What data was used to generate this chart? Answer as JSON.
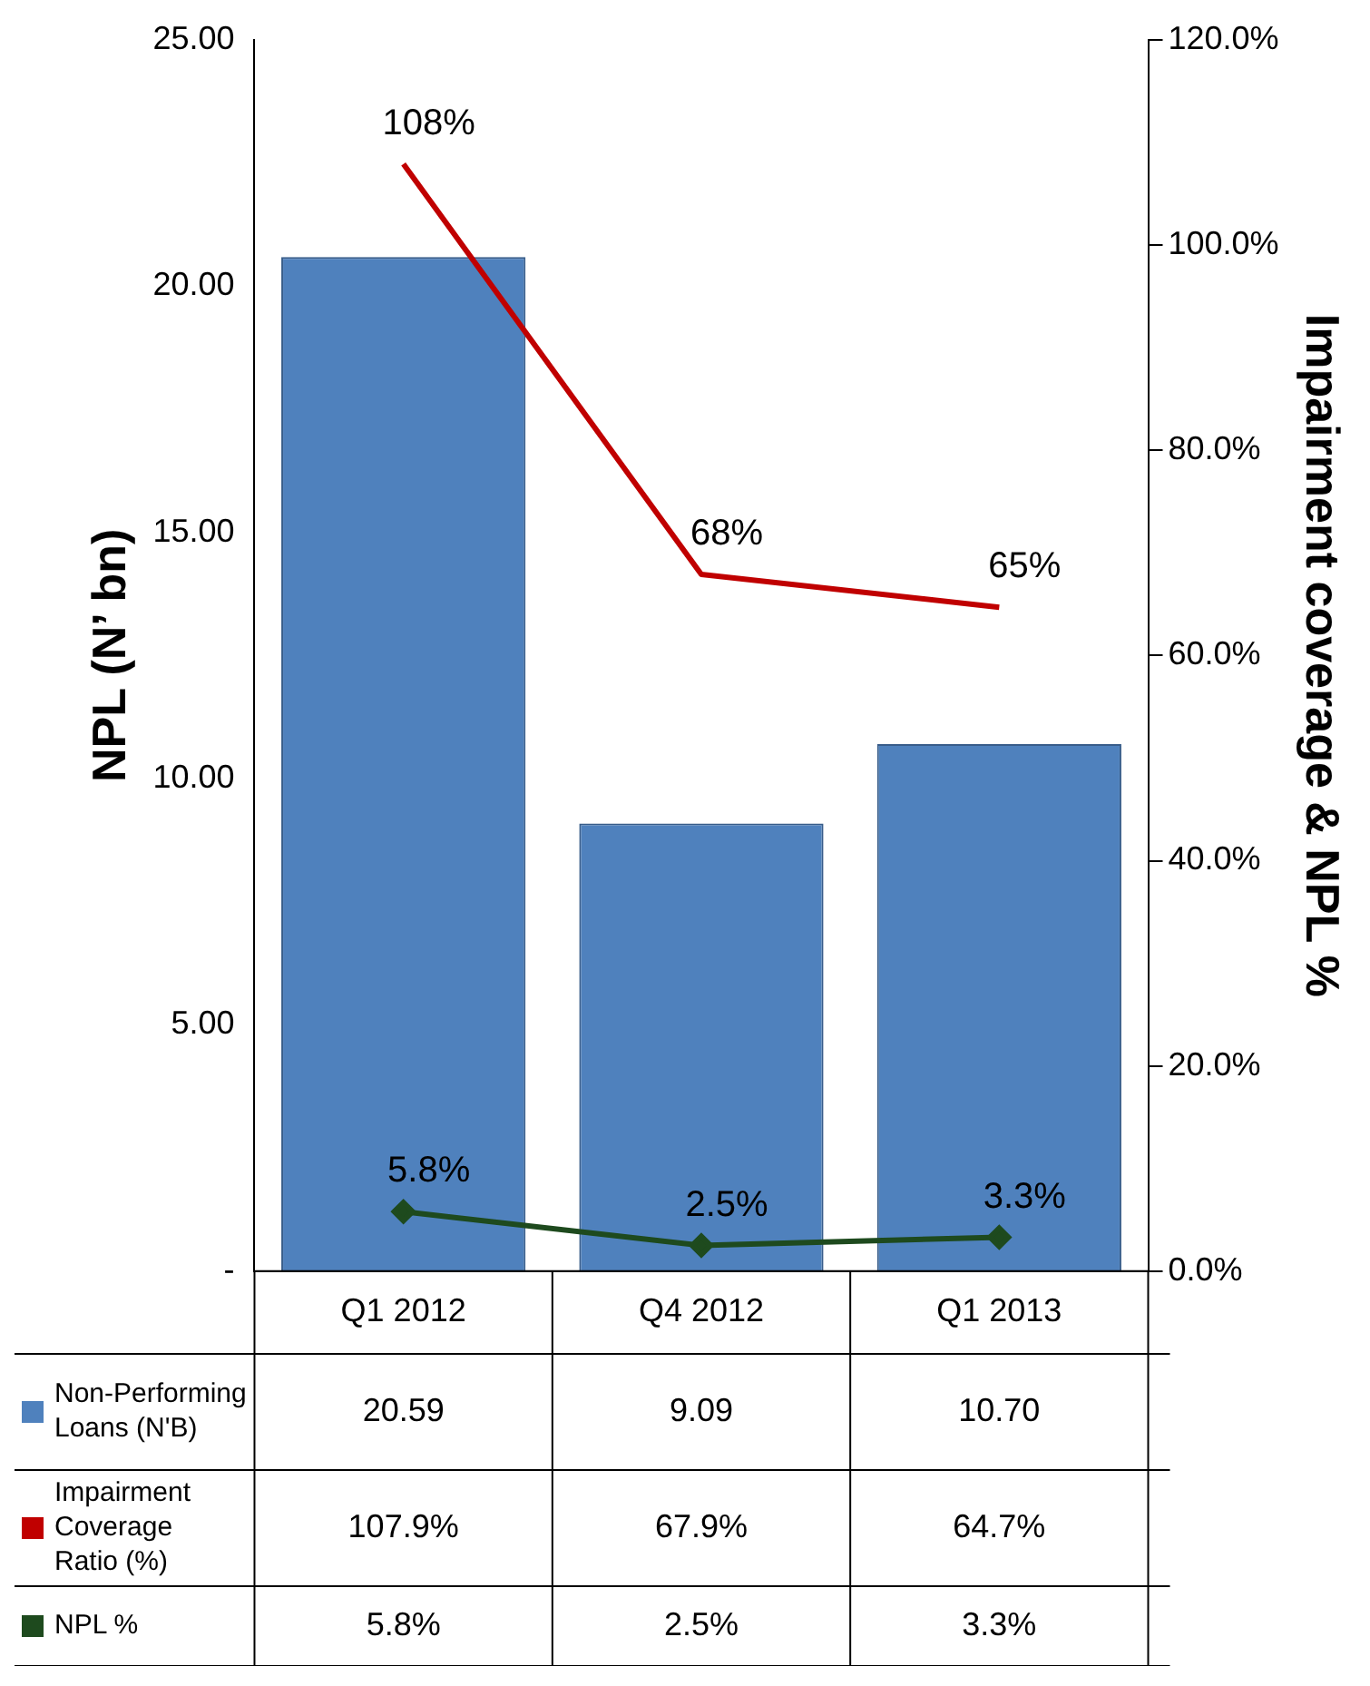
{
  "chart_data": {
    "type": "bar",
    "ylabel": "NPL (N’ bn)",
    "y2label": "Impairment coverage & NPL %",
    "categories": [
      "Q1 2012",
      "Q4 2012",
      "Q1 2013"
    ],
    "series": [
      {
        "name": "Non-Performing Loans (N'B)",
        "color": "#4f81bd",
        "values": [
          20.59,
          9.09,
          10.7
        ],
        "value_labels": [
          "20.59",
          "9.09",
          "10.70"
        ]
      },
      {
        "name": "Impairment Coverage Ratio (%)",
        "type": "line",
        "axis": "y2",
        "color": "#c00000",
        "marker": "none",
        "values": [
          107.9,
          67.9,
          64.7
        ],
        "value_labels": [
          "107.9%",
          "67.9%",
          "64.7%"
        ]
      },
      {
        "name": "NPL %",
        "type": "line",
        "axis": "y2",
        "color": "#1e4a1e",
        "marker": "diamond",
        "values": [
          5.8,
          2.5,
          3.3
        ],
        "value_labels": [
          "5.8%",
          "2.5%",
          "3.3%"
        ]
      }
    ],
    "annotations": [
      "108%",
      "68%",
      "65%",
      "5.8%",
      "2.5%",
      "3.3%"
    ],
    "ylim": [
      0,
      25
    ],
    "yticks": [
      {
        "value": 0,
        "label": "-"
      },
      {
        "value": 5,
        "label": "5.00"
      },
      {
        "value": 10,
        "label": "10.00"
      },
      {
        "value": 15,
        "label": "15.00"
      },
      {
        "value": 20,
        "label": "20.00"
      },
      {
        "value": 25,
        "label": "25.00"
      }
    ],
    "y2lim": [
      0,
      120
    ],
    "y2ticks": [
      {
        "value": 0,
        "label": "0.0%"
      },
      {
        "value": 20,
        "label": "20.0%"
      },
      {
        "value": 40,
        "label": "40.0%"
      },
      {
        "value": 60,
        "label": "60.0%"
      },
      {
        "value": 80,
        "label": "80.0%"
      },
      {
        "value": 100,
        "label": "100.0%"
      },
      {
        "value": 120,
        "label": "120.0%"
      }
    ],
    "grid": false,
    "legend": "bottom left"
  }
}
